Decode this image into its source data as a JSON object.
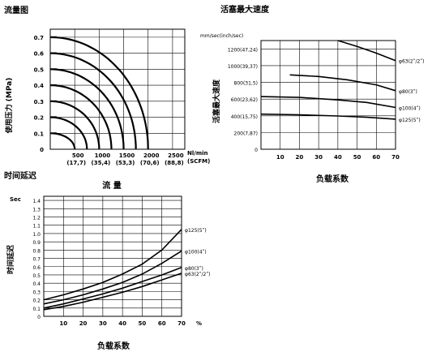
{
  "chart_data": [
    {
      "type": "line",
      "title": "流量图",
      "ylabel": "使用压力 (MPa)",
      "xlabel": "流  量",
      "y_ticks": [
        "0.7",
        "0.6",
        "0.5",
        "0.4",
        "0.3",
        "0.2",
        "0.1",
        "0"
      ],
      "x_ticks": [
        "500",
        "1000",
        "1500",
        "2000",
        "2500"
      ],
      "x_ticks_sub": [
        "(17,7)",
        "(35,4)",
        "(53,3)",
        "(70,6)",
        "(88,8)"
      ],
      "x_unit_1": "Nl/min",
      "x_unit_2": "(SCFM)",
      "ylim": [
        0,
        0.75
      ],
      "xlim": [
        0,
        2750
      ],
      "series": [
        {
          "flow_max": 500,
          "p_max": 0.1
        },
        {
          "flow_max": 750,
          "p_max": 0.2
        },
        {
          "flow_max": 1000,
          "p_max": 0.3
        },
        {
          "flow_max": 1250,
          "p_max": 0.4
        },
        {
          "flow_max": 1500,
          "p_max": 0.5
        },
        {
          "flow_max": 1750,
          "p_max": 0.6
        },
        {
          "flow_max": 2000,
          "p_max": 0.7
        }
      ]
    },
    {
      "type": "line",
      "title": "活塞最大速度",
      "unit_label": "mm/sec(inch/sec)",
      "ylabel": "活塞最大速度",
      "xlabel": "负载系数",
      "y_ticks": [
        "1200(47,24)",
        "1000(39,37)",
        "800(31,5)",
        "600(23,62)",
        "400(15,75)",
        "200(7,87)",
        "0"
      ],
      "x_ticks": [
        "10",
        "20",
        "30",
        "40",
        "50",
        "60",
        "70"
      ],
      "ylim": [
        0,
        1300
      ],
      "xlim": [
        0,
        70
      ],
      "series": [
        {
          "name": "φ63(2ʺ/2ʺ)",
          "x": [
            40,
            50,
            60,
            70
          ],
          "y": [
            1300,
            1230,
            1150,
            1060
          ]
        },
        {
          "name": "φ80(3ʺ)",
          "x": [
            15,
            30,
            45,
            60,
            70
          ],
          "y": [
            890,
            870,
            830,
            770,
            700
          ]
        },
        {
          "name": "φ100(4ʺ)",
          "x": [
            0,
            20,
            40,
            55,
            70
          ],
          "y": [
            630,
            620,
            590,
            560,
            500
          ]
        },
        {
          "name": "φ125(5ʺ)",
          "x": [
            0,
            20,
            40,
            55,
            70
          ],
          "y": [
            420,
            412,
            398,
            382,
            360
          ]
        }
      ]
    },
    {
      "type": "line",
      "title": "时间延迟",
      "ylabel": "时间延迟",
      "unit_label": "Sec",
      "xlabel": "负载系数",
      "x_end_label": "%",
      "y_ticks": [
        "1.4",
        "1.3",
        "1.2",
        "1.1",
        "1.0",
        "0.9",
        "0.8",
        "0.7",
        "0.6",
        "0.5",
        "0.4",
        "0.3",
        "0.2",
        "0.1",
        "0"
      ],
      "x_ticks": [
        "10",
        "20",
        "30",
        "40",
        "50",
        "60",
        "70"
      ],
      "ylim": [
        0,
        1.45
      ],
      "xlim": [
        0,
        70
      ],
      "series": [
        {
          "name": "φ125(5ʺ)",
          "x": [
            0,
            10,
            20,
            30,
            40,
            50,
            60,
            70
          ],
          "y": [
            0.2,
            0.26,
            0.33,
            0.41,
            0.51,
            0.63,
            0.8,
            1.05
          ]
        },
        {
          "name": "φ100(4ʺ)",
          "x": [
            0,
            10,
            20,
            30,
            40,
            50,
            60,
            70
          ],
          "y": [
            0.15,
            0.2,
            0.26,
            0.33,
            0.41,
            0.51,
            0.64,
            0.79
          ]
        },
        {
          "name": "φ80(3ʺ)",
          "x": [
            0,
            10,
            20,
            30,
            40,
            50,
            60,
            70
          ],
          "y": [
            0.1,
            0.15,
            0.21,
            0.27,
            0.34,
            0.42,
            0.5,
            0.59
          ]
        },
        {
          "name": "φ63(2ʺ/2ʺ)",
          "x": [
            0,
            10,
            20,
            30,
            40,
            50,
            60,
            70
          ],
          "y": [
            0.08,
            0.12,
            0.17,
            0.23,
            0.29,
            0.36,
            0.44,
            0.52
          ]
        }
      ]
    }
  ]
}
